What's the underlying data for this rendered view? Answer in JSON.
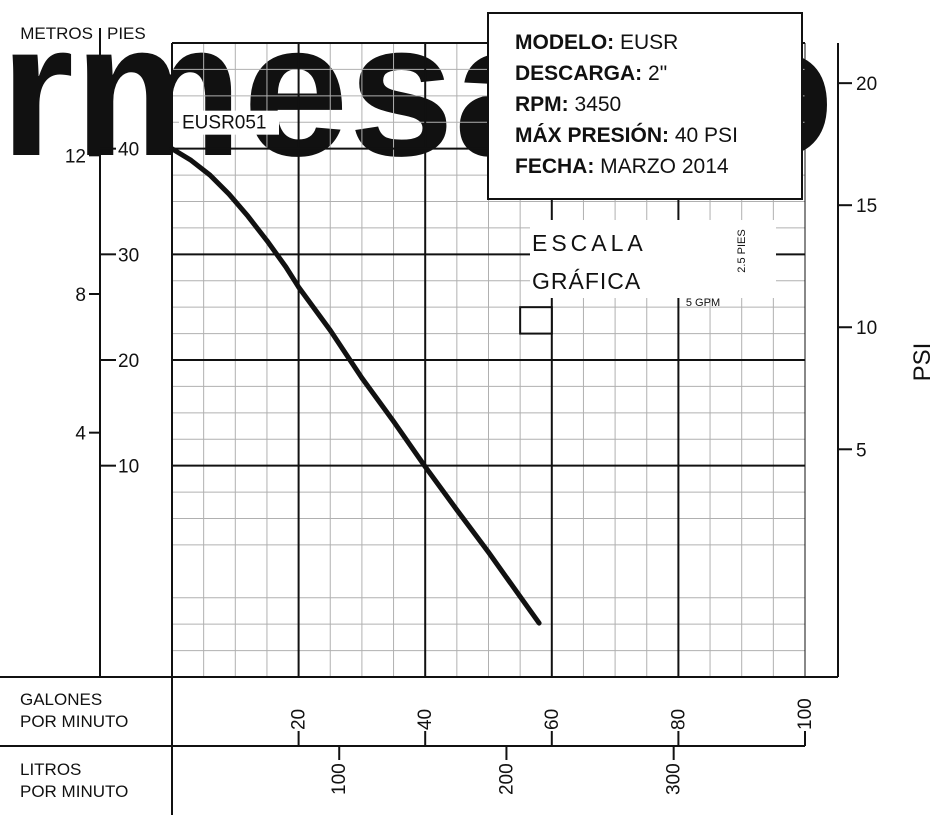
{
  "chart_data": {
    "type": "line",
    "series": [
      {
        "name": "EUSR051",
        "x": [
          0,
          3,
          6,
          9,
          12,
          15,
          18,
          20,
          25,
          30,
          35,
          40,
          45,
          50,
          55,
          58
        ],
        "y": [
          40,
          38.9,
          37.5,
          35.7,
          33.6,
          31.3,
          28.8,
          26.9,
          22.8,
          18.3,
          14.2,
          9.9,
          5.8,
          1.8,
          -2.4,
          -4.9
        ]
      }
    ],
    "x_axis": {
      "label_lines": [
        "GALONES",
        "POR MINUTO"
      ],
      "ticks": [
        "20",
        "40",
        "60",
        "80",
        "100"
      ],
      "range": [
        0,
        100
      ]
    },
    "x2_axis": {
      "label_lines": [
        "LITROS",
        "POR MINUTO"
      ],
      "ticks": [
        "100",
        "200",
        "300"
      ]
    },
    "y_axis_feet": {
      "label": "PIES",
      "ticks": [
        "10",
        "20",
        "30",
        "40"
      ],
      "range": [
        -10,
        50
      ]
    },
    "y_axis_meters": {
      "label": "METROS",
      "ticks": [
        "4",
        "8",
        "12"
      ]
    },
    "y_axis_psi": {
      "label": "PSI",
      "ticks": [
        "5",
        "10",
        "15",
        "20"
      ]
    },
    "scale_note": {
      "words": [
        "ESCALA",
        "GRÁFICA"
      ],
      "height_label": "2.5 PIES",
      "width_label": "5 GPM"
    },
    "grid": true
  },
  "info_box": {
    "lines": [
      {
        "key": "MODELO:",
        "value": "EUSR"
      },
      {
        "key": "DESCARGA:",
        "value": "2\""
      },
      {
        "key": "RPM:",
        "value": "3450"
      },
      {
        "key": "MÁX PRESIÓN:",
        "value": "40 PSI"
      },
      {
        "key": "FECHA:",
        "value": "MARZO 2014"
      }
    ]
  },
  "watermark": "rmesa.co",
  "colors": {
    "line": "#111111",
    "watermark": "#ebebeb",
    "grid_minor": "#b0b0b0"
  }
}
